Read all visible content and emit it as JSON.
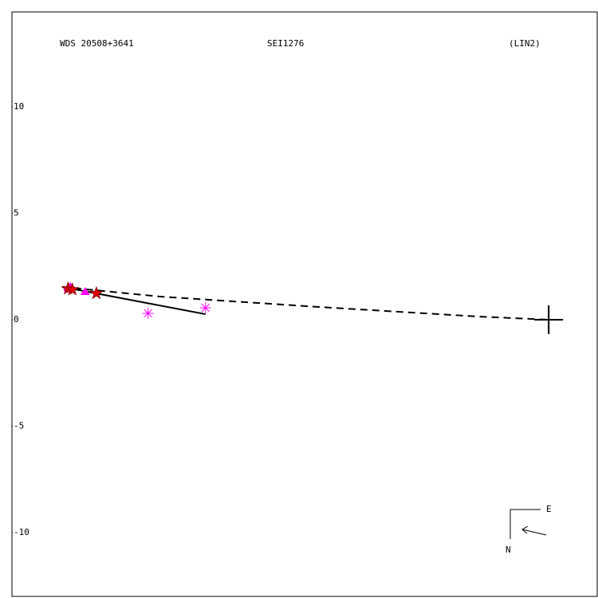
{
  "chart_data": {
    "type": "scatter",
    "title": "WDS 20508+3641",
    "subtitle": "SEI1276",
    "annotation": "(LIN2)",
    "compass": {
      "east": "E",
      "north": "N"
    },
    "xlim": [
      -25.24,
      2.28
    ],
    "ylim": [
      -13.0,
      14.46
    ],
    "yticks": [
      10,
      5,
      0,
      -5,
      -10
    ],
    "primary": {
      "x": 0,
      "y": 0
    },
    "series": [
      {
        "style": "dashed-line",
        "color": "#000000",
        "x": [
          -22.88,
          -18.31,
          -10.82,
          -3.33,
          0
        ],
        "values": [
          1.54,
          1.09,
          0.6,
          0.15,
          0
        ]
      },
      {
        "style": "solid-line",
        "color": "#000000",
        "x": [
          -22.88,
          -16.14
        ],
        "values": [
          1.54,
          0.26
        ]
      },
      {
        "style": "circle",
        "color": "#ff00ff",
        "x": [
          -22.66
        ],
        "values": [
          1.42
        ]
      },
      {
        "style": "triangle",
        "color": "#ff00ff",
        "x": [
          -22.5,
          -21.8
        ],
        "values": [
          1.54,
          1.31
        ]
      },
      {
        "style": "star",
        "color": "#dd0000",
        "x": [
          -22.6,
          -22.4,
          -21.27
        ],
        "values": [
          1.46,
          1.42,
          1.24
        ]
      },
      {
        "style": "asterisk",
        "color": "#ff00ff",
        "x": [
          -18.84,
          -16.14
        ],
        "values": [
          0.3,
          0.56
        ]
      }
    ]
  }
}
